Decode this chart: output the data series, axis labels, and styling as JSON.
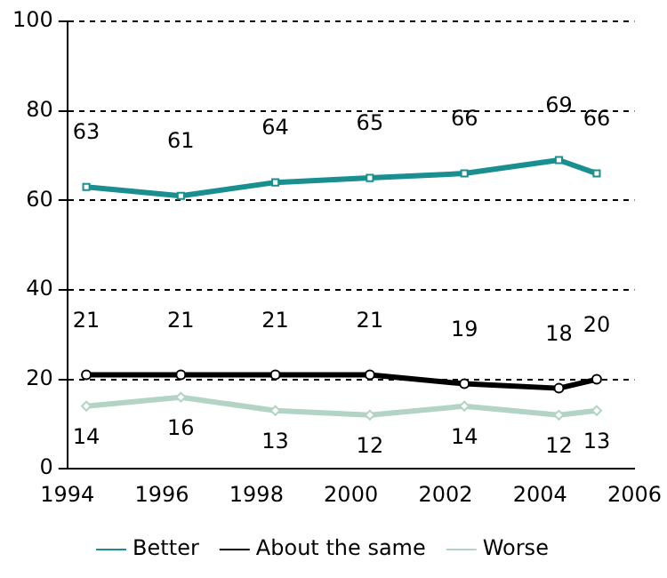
{
  "chart_data": {
    "type": "line",
    "x": [
      1994.4,
      1996.4,
      1998.4,
      2000.4,
      2002.4,
      2004.4,
      2005.2
    ],
    "series": [
      {
        "name": "Better",
        "color": "#1a8f8f",
        "marker": "square",
        "values": [
          63,
          61,
          64,
          65,
          66,
          69,
          66
        ]
      },
      {
        "name": "About the same",
        "color": "#000000",
        "marker": "circle",
        "values": [
          21,
          21,
          21,
          21,
          19,
          18,
          20
        ]
      },
      {
        "name": "Worse",
        "color": "#b3d4c4",
        "marker": "diamond",
        "values": [
          14,
          16,
          13,
          12,
          14,
          12,
          13
        ]
      }
    ],
    "xlim": [
      1994,
      2006
    ],
    "xticks": [
      1994,
      1996,
      1998,
      2000,
      2002,
      2004,
      2006
    ],
    "ylim": [
      0,
      100
    ],
    "yticks": [
      0,
      20,
      40,
      60,
      80,
      100
    ],
    "grid": "y",
    "legend": "bottom",
    "data_labels": true,
    "line_style": "solid"
  }
}
